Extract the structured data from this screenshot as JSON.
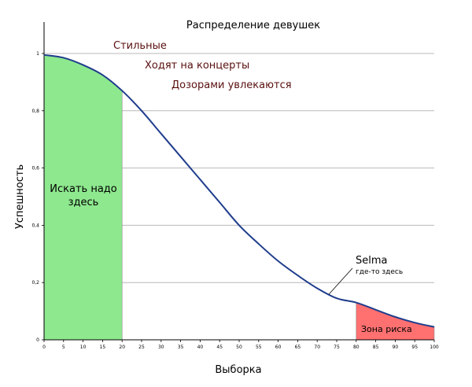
{
  "chart_data": {
    "type": "area",
    "title": "Распределение девушек",
    "xlabel": "Выборка",
    "ylabel": "Успешность",
    "xlim": [
      0,
      100
    ],
    "ylim": [
      0,
      1
    ],
    "grid": true,
    "x_ticks": [
      0,
      5,
      10,
      15,
      20,
      25,
      30,
      35,
      40,
      45,
      50,
      55,
      60,
      65,
      70,
      75,
      80,
      85,
      90,
      95,
      100
    ],
    "y_ticks": [
      {
        "value": 0,
        "label": "0"
      },
      {
        "value": 0.2,
        "label": "0,2"
      },
      {
        "value": 0.4,
        "label": "0,4"
      },
      {
        "value": 0.6,
        "label": "0,6"
      },
      {
        "value": 0.8,
        "label": "0,8"
      },
      {
        "value": 1,
        "label": "1"
      }
    ],
    "series": [
      {
        "x": [
          0,
          5,
          10,
          15,
          20,
          25,
          30,
          35,
          40,
          45,
          50,
          55,
          60,
          65,
          70,
          75,
          80,
          85,
          90,
          95,
          100
        ],
        "values": [
          0.995,
          0.985,
          0.96,
          0.925,
          0.87,
          0.8,
          0.72,
          0.64,
          0.56,
          0.48,
          0.4,
          0.335,
          0.275,
          0.225,
          0.18,
          0.145,
          0.13,
          0.105,
          0.08,
          0.06,
          0.045
        ]
      }
    ],
    "regions": [
      {
        "x_range": [
          0,
          20
        ],
        "label": "Искать надо здесь"
      },
      {
        "x_range": [
          80,
          100
        ],
        "label": "Зона риска"
      }
    ],
    "annotations": [
      "Стильные",
      "Ходят на концерты",
      "Дозорами увлекаются"
    ],
    "callout": {
      "title": "Selma",
      "subtitle": "где-то здесь",
      "x": 73
    }
  },
  "colors": {
    "curve": "#1f3d8c",
    "green_zone": "#8ee88e",
    "red_zone": "#ff7070",
    "annotation_text": "#5a0f0f",
    "grid": "#b8b8b8"
  }
}
